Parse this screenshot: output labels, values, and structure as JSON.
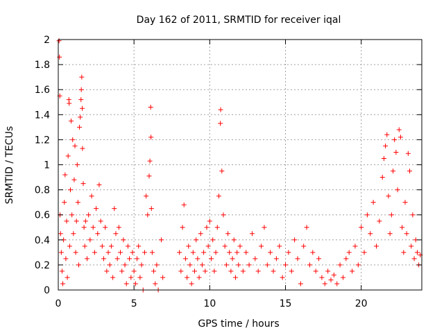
{
  "chart_data": {
    "type": "scatter",
    "title": "Day 162 of 2011, SRMTID for receiver iqal",
    "xlabel": "GPS time / hours",
    "ylabel": "SRMTID / TECUs",
    "xlim": [
      0,
      24
    ],
    "ylim": [
      0,
      2
    ],
    "xticks": [
      0,
      5,
      10,
      15,
      20
    ],
    "xtick_labels": [
      "0",
      "5",
      "10",
      "15",
      "20"
    ],
    "yticks": [
      0,
      0.2,
      0.4,
      0.6,
      0.8,
      1,
      1.2,
      1.4,
      1.6,
      1.8,
      2
    ],
    "ytick_labels": [
      "0",
      "0.2",
      "0.4",
      "0.6",
      "0.8",
      "1",
      "1.2",
      "1.4",
      "1.6",
      "1.8",
      "2"
    ],
    "grid": true,
    "marker": "+",
    "color": "#ff0000",
    "series": [
      {
        "name": "SRMTID",
        "points": [
          [
            0.05,
            1.99
          ],
          [
            0.08,
            1.86
          ],
          [
            0.1,
            1.55
          ],
          [
            0.12,
            0.6
          ],
          [
            0.15,
            0.45
          ],
          [
            0.2,
            0.3
          ],
          [
            0.25,
            0.15
          ],
          [
            0.3,
            0.05
          ],
          [
            0.35,
            0.4
          ],
          [
            0.4,
            0.7
          ],
          [
            0.45,
            0.92
          ],
          [
            0.5,
            0.25
          ],
          [
            0.55,
            0.55
          ],
          [
            0.6,
            0.1
          ],
          [
            0.65,
            1.07
          ],
          [
            0.7,
            1.52
          ],
          [
            0.72,
            1.49
          ],
          [
            0.75,
            0.35
          ],
          [
            0.8,
            0.8
          ],
          [
            0.85,
            1.35
          ],
          [
            0.9,
            0.6
          ],
          [
            0.95,
            1.2
          ],
          [
            1.0,
            0.45
          ],
          [
            1.05,
            0.88
          ],
          [
            1.1,
            1.15
          ],
          [
            1.15,
            0.3
          ],
          [
            1.2,
            0.55
          ],
          [
            1.25,
            1.0
          ],
          [
            1.3,
            0.7
          ],
          [
            1.35,
            0.2
          ],
          [
            1.4,
            1.3
          ],
          [
            1.45,
            1.38
          ],
          [
            1.5,
            1.52
          ],
          [
            1.52,
            1.6
          ],
          [
            1.55,
            1.7
          ],
          [
            1.58,
            1.45
          ],
          [
            1.6,
            1.13
          ],
          [
            1.65,
            0.85
          ],
          [
            1.7,
            0.5
          ],
          [
            1.75,
            0.35
          ],
          [
            1.8,
            0.55
          ],
          [
            1.9,
            0.25
          ],
          [
            2.0,
            0.6
          ],
          [
            2.1,
            0.4
          ],
          [
            2.2,
            0.75
          ],
          [
            2.3,
            0.5
          ],
          [
            2.4,
            0.3
          ],
          [
            2.5,
            0.65
          ],
          [
            2.6,
            0.45
          ],
          [
            2.7,
            0.84
          ],
          [
            2.8,
            0.55
          ],
          [
            2.9,
            0.35
          ],
          [
            3.0,
            0.25
          ],
          [
            3.1,
            0.5
          ],
          [
            3.2,
            0.15
          ],
          [
            3.3,
            0.3
          ],
          [
            3.4,
            0.2
          ],
          [
            3.5,
            0.35
          ],
          [
            3.6,
            0.1
          ],
          [
            3.7,
            0.65
          ],
          [
            3.8,
            0.45
          ],
          [
            3.9,
            0.25
          ],
          [
            4.0,
            0.5
          ],
          [
            4.1,
            0.3
          ],
          [
            4.2,
            0.15
          ],
          [
            4.3,
            0.4
          ],
          [
            4.4,
            0.2
          ],
          [
            4.5,
            0.05
          ],
          [
            4.6,
            0.35
          ],
          [
            4.7,
            0.25
          ],
          [
            4.8,
            0.1
          ],
          [
            4.9,
            0.3
          ],
          [
            5.0,
            0.15
          ],
          [
            5.1,
            0.05
          ],
          [
            5.2,
            0.25
          ],
          [
            5.3,
            0.35
          ],
          [
            5.4,
            0.1
          ],
          [
            5.5,
            0.2
          ],
          [
            5.6,
            0.0
          ],
          [
            5.7,
            0.3
          ],
          [
            5.8,
            0.75
          ],
          [
            5.9,
            0.6
          ],
          [
            6.0,
            0.91
          ],
          [
            6.05,
            1.03
          ],
          [
            6.1,
            1.46
          ],
          [
            6.12,
            1.22
          ],
          [
            6.15,
            0.65
          ],
          [
            6.2,
            0.3
          ],
          [
            6.3,
            0.15
          ],
          [
            6.4,
            0.05
          ],
          [
            6.5,
            0.2
          ],
          [
            6.6,
            0.0
          ],
          [
            6.8,
            0.4
          ],
          [
            6.9,
            0.1
          ],
          [
            8.0,
            0.3
          ],
          [
            8.1,
            0.15
          ],
          [
            8.2,
            0.5
          ],
          [
            8.3,
            0.68
          ],
          [
            8.4,
            0.25
          ],
          [
            8.5,
            0.1
          ],
          [
            8.6,
            0.35
          ],
          [
            8.7,
            0.2
          ],
          [
            8.8,
            0.05
          ],
          [
            8.9,
            0.3
          ],
          [
            9.0,
            0.15
          ],
          [
            9.1,
            0.4
          ],
          [
            9.2,
            0.25
          ],
          [
            9.3,
            0.1
          ],
          [
            9.4,
            0.45
          ],
          [
            9.5,
            0.2
          ],
          [
            9.6,
            0.3
          ],
          [
            9.7,
            0.15
          ],
          [
            9.8,
            0.5
          ],
          [
            9.9,
            0.35
          ],
          [
            10.0,
            0.55
          ],
          [
            10.1,
            0.25
          ],
          [
            10.2,
            0.4
          ],
          [
            10.3,
            0.15
          ],
          [
            10.4,
            0.3
          ],
          [
            10.5,
            0.5
          ],
          [
            10.6,
            0.75
          ],
          [
            10.7,
            1.33
          ],
          [
            10.72,
            1.44
          ],
          [
            10.8,
            0.95
          ],
          [
            10.9,
            0.6
          ],
          [
            11.0,
            0.35
          ],
          [
            11.1,
            0.2
          ],
          [
            11.2,
            0.45
          ],
          [
            11.3,
            0.3
          ],
          [
            11.4,
            0.15
          ],
          [
            11.5,
            0.25
          ],
          [
            11.6,
            0.4
          ],
          [
            11.7,
            0.1
          ],
          [
            11.8,
            0.3
          ],
          [
            11.9,
            0.2
          ],
          [
            12.0,
            0.35
          ],
          [
            12.2,
            0.15
          ],
          [
            12.4,
            0.3
          ],
          [
            12.6,
            0.2
          ],
          [
            12.8,
            0.45
          ],
          [
            13.0,
            0.25
          ],
          [
            13.2,
            0.15
          ],
          [
            13.4,
            0.35
          ],
          [
            13.6,
            0.5
          ],
          [
            13.8,
            0.2
          ],
          [
            14.0,
            0.3
          ],
          [
            14.2,
            0.15
          ],
          [
            14.4,
            0.25
          ],
          [
            14.6,
            0.35
          ],
          [
            14.8,
            0.1
          ],
          [
            15.0,
            0.2
          ],
          [
            15.2,
            0.3
          ],
          [
            15.4,
            0.15
          ],
          [
            15.6,
            0.4
          ],
          [
            15.8,
            0.25
          ],
          [
            16.0,
            0.05
          ],
          [
            16.2,
            0.35
          ],
          [
            16.4,
            0.5
          ],
          [
            16.6,
            0.2
          ],
          [
            16.8,
            0.3
          ],
          [
            17.0,
            0.15
          ],
          [
            17.2,
            0.25
          ],
          [
            17.4,
            0.1
          ],
          [
            17.6,
            0.05
          ],
          [
            17.8,
            0.15
          ],
          [
            18.0,
            0.08
          ],
          [
            18.2,
            0.12
          ],
          [
            18.4,
            0.05
          ],
          [
            18.6,
            0.2
          ],
          [
            18.8,
            0.1
          ],
          [
            19.0,
            0.25
          ],
          [
            19.2,
            0.3
          ],
          [
            19.4,
            0.15
          ],
          [
            19.6,
            0.35
          ],
          [
            19.8,
            0.2
          ],
          [
            20.0,
            0.5
          ],
          [
            20.2,
            0.3
          ],
          [
            20.4,
            0.6
          ],
          [
            20.6,
            0.45
          ],
          [
            20.8,
            0.7
          ],
          [
            21.0,
            0.35
          ],
          [
            21.2,
            0.55
          ],
          [
            21.4,
            0.9
          ],
          [
            21.5,
            1.05
          ],
          [
            21.6,
            1.15
          ],
          [
            21.7,
            1.24
          ],
          [
            21.8,
            0.75
          ],
          [
            21.9,
            0.45
          ],
          [
            22.0,
            0.6
          ],
          [
            22.1,
            0.95
          ],
          [
            22.2,
            1.2
          ],
          [
            22.3,
            1.1
          ],
          [
            22.4,
            0.8
          ],
          [
            22.5,
            1.28
          ],
          [
            22.6,
            1.22
          ],
          [
            22.7,
            0.5
          ],
          [
            22.8,
            0.3
          ],
          [
            22.9,
            0.7
          ],
          [
            23.0,
            0.45
          ],
          [
            23.1,
            1.09
          ],
          [
            23.2,
            0.95
          ],
          [
            23.3,
            0.35
          ],
          [
            23.4,
            0.6
          ],
          [
            23.5,
            0.25
          ],
          [
            23.6,
            0.4
          ],
          [
            23.7,
            0.3
          ],
          [
            23.8,
            0.2
          ],
          [
            23.9,
            0.28
          ]
        ]
      }
    ]
  }
}
